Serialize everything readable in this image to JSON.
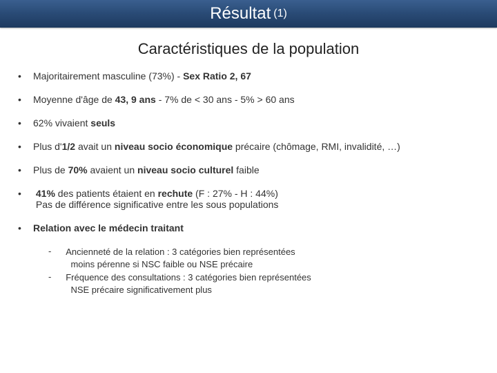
{
  "title": {
    "main": "Résultat",
    "sub": "(1)"
  },
  "subtitle": "Caractéristiques de la population",
  "bullets": {
    "b1": {
      "pre": "Majoritairement masculine (73%) - ",
      "bold": "Sex Ratio 2, 67"
    },
    "b2": {
      "pre": "Moyenne d'âge de ",
      "bold": "43, 9 ans",
      "post": " -  7% de < 30 ans - 5% > 60 ans"
    },
    "b3": {
      "pre": "62% vivaient ",
      "bold": "seuls"
    },
    "b4": {
      "pre": "Plus d'",
      "bold1": "1/2",
      "mid": " avait un ",
      "bold2": "niveau socio économique",
      "post": " précaire (chômage, RMI, invalidité, …)"
    },
    "b5": {
      "pre": "Plus de ",
      "bold1": "70%",
      "mid": " avaient un ",
      "bold2": "niveau socio culturel",
      "post": " faible"
    },
    "b6": {
      "bold1": "41%",
      "mid": " des patients étaient en ",
      "bold2": "rechute",
      "post1": " (F : 27% - H : 44%)",
      "line2": "Pas de différence significative entre les sous populations"
    },
    "b7": {
      "label": "Relation avec le médecin traitant"
    }
  },
  "sub": {
    "s1a": "Ancienneté de la relation : 3 catégories bien représentées",
    "s1b": "moins pérenne si NSC faible ou  NSE précaire",
    "s2a": "Fréquence des consultations : 3 catégories bien représentées",
    "s2b": "NSE précaire significativement plus"
  }
}
